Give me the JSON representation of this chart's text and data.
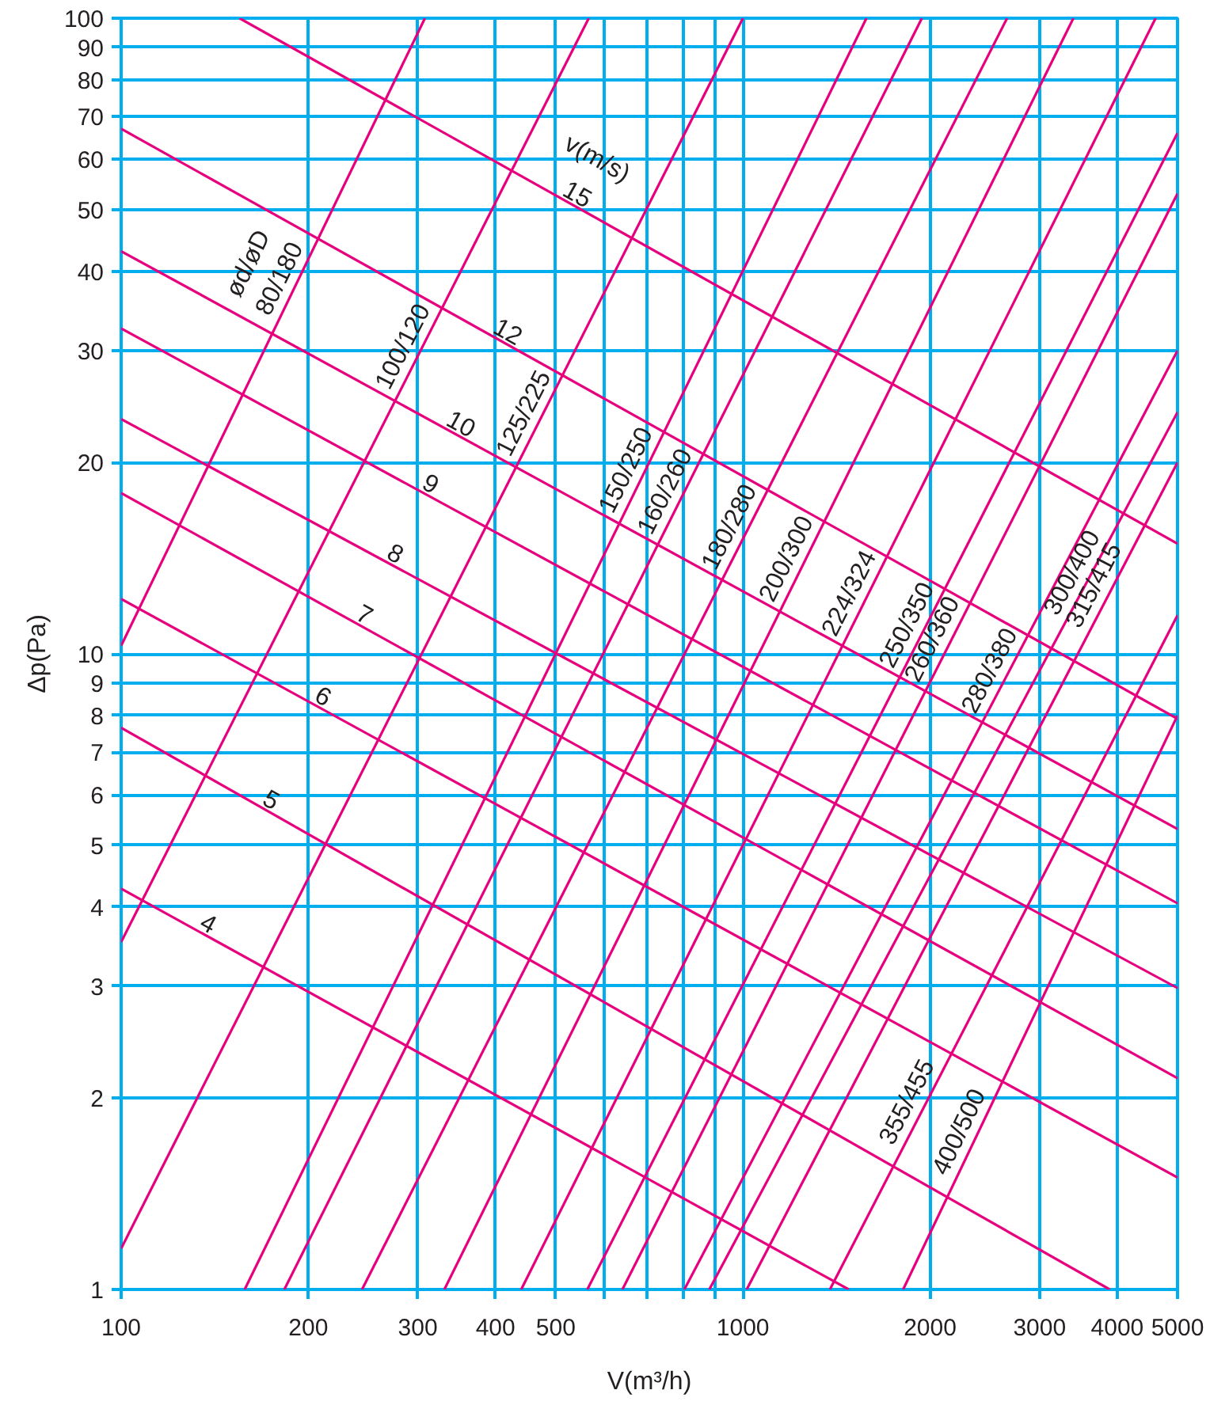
{
  "chart_data": {
    "type": "line",
    "log": "xy",
    "xlabel": "V(m³/h)",
    "ylabel": "Δp(Pa)",
    "grid": true,
    "xlim": [
      100,
      5000
    ],
    "ylim": [
      1,
      100
    ],
    "xticks": [
      100,
      200,
      300,
      400,
      500,
      {
        "value": 600,
        "label": null
      },
      {
        "value": 700,
        "label": null
      },
      {
        "value": 800,
        "label": null
      },
      {
        "value": 900,
        "label": null
      },
      1000,
      2000,
      3000,
      4000,
      5000
    ],
    "yticks": [
      1,
      2,
      3,
      4,
      5,
      6,
      7,
      8,
      9,
      10,
      20,
      30,
      40,
      50,
      60,
      70,
      80,
      90,
      100
    ],
    "annotations": [
      "v(m/s)",
      "ød/øD"
    ],
    "series": [
      {
        "name": "4",
        "color": "#e6007e",
        "x": [
          100,
          1480
        ],
        "values": [
          4.27,
          1
        ]
      },
      {
        "name": "5",
        "color": "#e6007e",
        "x": [
          100,
          3890
        ],
        "values": [
          7.65,
          1
        ]
      },
      {
        "name": "6",
        "color": "#e6007e",
        "x": [
          100,
          5000
        ],
        "values": [
          12.2,
          1.5
        ]
      },
      {
        "name": "7",
        "color": "#e6007e",
        "x": [
          100,
          5000
        ],
        "values": [
          17.9,
          2.15
        ]
      },
      {
        "name": "8",
        "color": "#e6007e",
        "x": [
          100,
          5000
        ],
        "values": [
          23.4,
          2.98
        ]
      },
      {
        "name": "9",
        "color": "#e6007e",
        "x": [
          100,
          5000
        ],
        "values": [
          32.5,
          4.05
        ]
      },
      {
        "name": "10",
        "color": "#e6007e",
        "x": [
          100,
          5000
        ],
        "values": [
          43,
          5.3
        ]
      },
      {
        "name": "12",
        "color": "#e6007e",
        "x": [
          100,
          5000
        ],
        "values": [
          67,
          7.9
        ]
      },
      {
        "name": "15",
        "color": "#e6007e",
        "x": [
          155,
          5000
        ],
        "values": [
          100,
          14.9
        ]
      },
      {
        "name": "80/180",
        "color": "#e6007e",
        "x": [
          100,
          308
        ],
        "values": [
          10.3,
          100
        ]
      },
      {
        "name": "100/120",
        "color": "#e6007e",
        "x": [
          100,
          565
        ],
        "values": [
          3.52,
          100
        ]
      },
      {
        "name": "125/225",
        "color": "#e6007e",
        "x": [
          100,
          1000
        ],
        "values": [
          1.16,
          100
        ]
      },
      {
        "name": "150/250",
        "color": "#e6007e",
        "x": [
          158,
          1580
        ],
        "values": [
          1,
          100
        ]
      },
      {
        "name": "160/260",
        "color": "#e6007e",
        "x": [
          183,
          1940
        ],
        "values": [
          1,
          100
        ]
      },
      {
        "name": "180/280",
        "color": "#e6007e",
        "x": [
          244,
          2660
        ],
        "values": [
          1,
          100
        ]
      },
      {
        "name": "200/300",
        "color": "#e6007e",
        "x": [
          331,
          3400
        ],
        "values": [
          1,
          100
        ]
      },
      {
        "name": "224/324",
        "color": "#e6007e",
        "x": [
          440,
          4610
        ],
        "values": [
          1,
          100
        ]
      },
      {
        "name": "250/350",
        "color": "#e6007e",
        "x": [
          562,
          5000
        ],
        "values": [
          1,
          66
        ]
      },
      {
        "name": "260/360",
        "color": "#e6007e",
        "x": [
          640,
          5000
        ],
        "values": [
          1,
          53
        ]
      },
      {
        "name": "280/380",
        "color": "#e6007e",
        "x": [
          805,
          5000
        ],
        "values": [
          1,
          30
        ]
      },
      {
        "name": "300/400",
        "color": "#e6007e",
        "x": [
          883,
          5000
        ],
        "values": [
          1,
          24
        ]
      },
      {
        "name": "315/415",
        "color": "#e6007e",
        "x": [
          1014,
          5000
        ],
        "values": [
          1,
          20
        ]
      },
      {
        "name": "355/455",
        "color": "#e6007e",
        "x": [
          1380,
          5000
        ],
        "values": [
          1,
          11.5
        ]
      },
      {
        "name": "400/500",
        "color": "#e6007e",
        "x": [
          1810,
          5000
        ],
        "values": [
          1,
          8
        ]
      }
    ]
  }
}
